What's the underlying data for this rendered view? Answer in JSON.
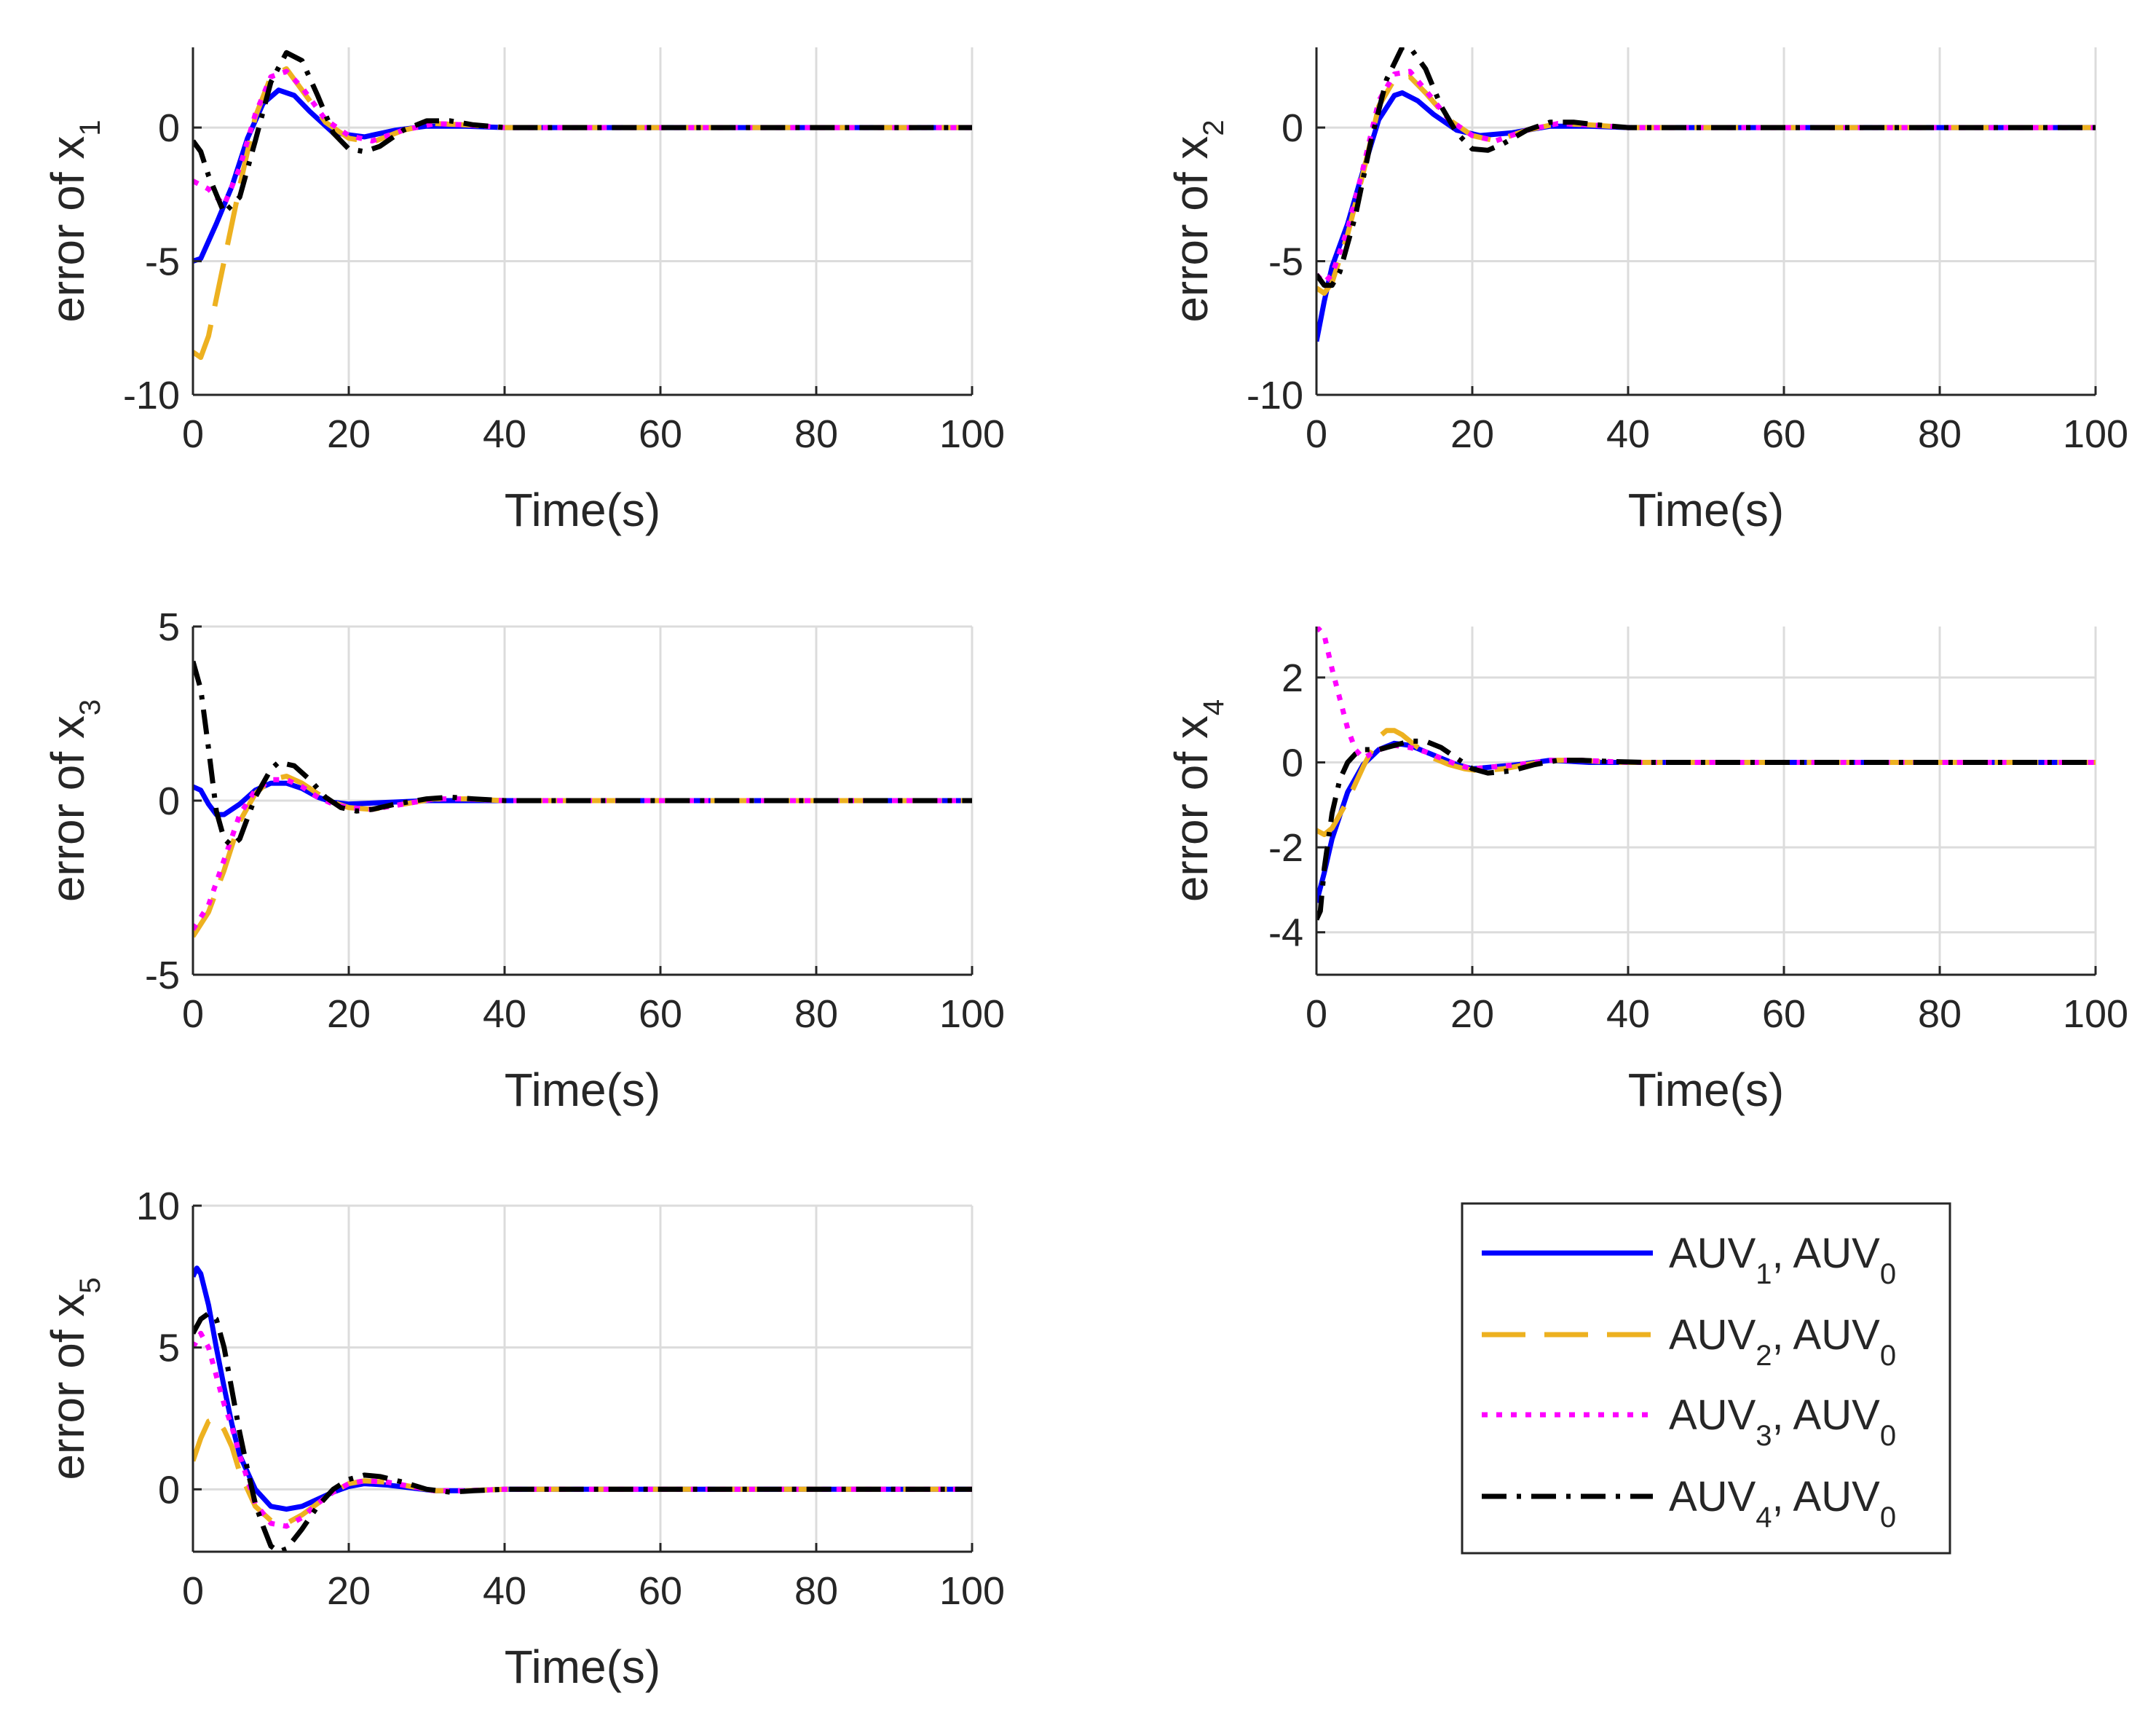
{
  "legend": {
    "location": "bottom-right",
    "entries": [
      {
        "main": "AUV",
        "sub": "1",
        "sep": ", ",
        "main2": "AUV",
        "sub2": "0"
      },
      {
        "main": "AUV",
        "sub": "2",
        "sep": ", ",
        "main2": "AUV",
        "sub2": "0"
      },
      {
        "main": "AUV",
        "sub": "3",
        "sep": ", ",
        "main2": "AUV",
        "sub2": "0"
      },
      {
        "main": "AUV",
        "sub": "4",
        "sep": ", ",
        "main2": "AUV",
        "sub2": "0"
      }
    ]
  },
  "series_style": [
    {
      "name": "AUV1, AUV0",
      "color": "#0000ff",
      "dash": "solid"
    },
    {
      "name": "AUV2, AUV0",
      "color": "#edb120",
      "dash": "dashed"
    },
    {
      "name": "AUV3, AUV0",
      "color": "#ff00ff",
      "dash": "dotted"
    },
    {
      "name": "AUV4, AUV0",
      "color": "#000000",
      "dash": "dashdot"
    }
  ],
  "chart_data": [
    {
      "type": "line",
      "ylabel_main": "error of x",
      "ylabel_sub": "1",
      "xlabel": "Time(s)",
      "xlim": [
        0,
        100
      ],
      "ylim": [
        -10,
        3
      ],
      "xticks": [
        "0",
        "20",
        "40",
        "60",
        "80",
        "100"
      ],
      "yticks": [
        {
          "v": -10,
          "t": "-10"
        },
        {
          "v": -5,
          "t": "-5"
        },
        {
          "v": 0,
          "t": "0"
        }
      ],
      "grid": true,
      "series": [
        {
          "name": "AUV1, AUV0",
          "x": [
            0,
            1,
            3,
            5,
            7,
            9,
            11,
            13,
            15,
            18,
            22,
            26,
            30,
            35,
            40,
            45,
            100
          ],
          "y": [
            -5,
            -4.9,
            -3.6,
            -2.2,
            -0.4,
            0.9,
            1.4,
            1.2,
            0.6,
            -0.2,
            -0.35,
            -0.1,
            0.05,
            0.05,
            0,
            0,
            0
          ]
        },
        {
          "name": "AUV2, AUV0",
          "x": [
            0,
            1,
            2,
            4,
            6,
            8,
            10,
            12,
            14,
            17,
            20,
            23,
            27,
            31,
            35,
            40,
            45,
            100
          ],
          "y": [
            -8.4,
            -8.6,
            -7.8,
            -5,
            -2.2,
            0.4,
            1.9,
            2.2,
            1.4,
            0.2,
            -0.4,
            -0.55,
            -0.1,
            0.15,
            0.1,
            0,
            0,
            0
          ]
        },
        {
          "name": "AUV3, AUV0",
          "x": [
            0,
            2,
            4,
            6,
            8,
            10,
            12,
            14,
            17,
            20,
            23,
            27,
            31,
            35,
            40,
            45,
            100
          ],
          "y": [
            -2,
            -2.3,
            -2.9,
            -1.5,
            0.5,
            1.9,
            2.1,
            1.5,
            0.3,
            -0.3,
            -0.5,
            -0.1,
            0.15,
            0.1,
            0,
            0,
            0
          ]
        },
        {
          "name": "AUV4, AUV0",
          "x": [
            0,
            1,
            2,
            4,
            6,
            8,
            10,
            12,
            14,
            16,
            18,
            20,
            22,
            24,
            27,
            30,
            33,
            36,
            40,
            45,
            100
          ],
          "y": [
            -0.5,
            -0.9,
            -1.8,
            -3.2,
            -2.6,
            -0.5,
            1.7,
            2.8,
            2.5,
            1.2,
            -0.2,
            -0.8,
            -0.9,
            -0.7,
            -0.1,
            0.25,
            0.25,
            0.1,
            0,
            0,
            0
          ]
        }
      ]
    },
    {
      "type": "line",
      "ylabel_main": "error of x",
      "ylabel_sub": "2",
      "xlabel": "Time(s)",
      "xlim": [
        0,
        100
      ],
      "ylim": [
        -10,
        3
      ],
      "xticks": [
        "0",
        "20",
        "40",
        "60",
        "80",
        "100"
      ],
      "yticks": [
        {
          "v": -10,
          "t": "-10"
        },
        {
          "v": -5,
          "t": "-5"
        },
        {
          "v": 0,
          "t": "0"
        }
      ],
      "grid": true,
      "series": [
        {
          "name": "AUV1, AUV0",
          "x": [
            0,
            1,
            2,
            4,
            6,
            8,
            10,
            11,
            13,
            15,
            18,
            21,
            25,
            30,
            35,
            40,
            45,
            100
          ],
          "y": [
            -8,
            -6.5,
            -5.2,
            -3.6,
            -1.6,
            0.3,
            1.2,
            1.3,
            1,
            0.5,
            -0.1,
            -0.3,
            -0.2,
            0.05,
            0.05,
            0,
            0,
            0
          ]
        },
        {
          "name": "AUV2, AUV0",
          "x": [
            0,
            1,
            2,
            4,
            6,
            8,
            10,
            12,
            14,
            17,
            20,
            23,
            27,
            31,
            35,
            40,
            45,
            100
          ],
          "y": [
            -6,
            -6.2,
            -5.8,
            -4,
            -1.7,
            0.8,
            1.8,
            1.9,
            1.3,
            0.3,
            -0.3,
            -0.5,
            -0.1,
            0.15,
            0.1,
            0,
            0,
            0
          ]
        },
        {
          "name": "AUV3, AUV0",
          "x": [
            0,
            1,
            2,
            4,
            6,
            8,
            10,
            12,
            14,
            17,
            20,
            23,
            27,
            31,
            35,
            40,
            45,
            100
          ],
          "y": [
            -5.5,
            -5.8,
            -5.5,
            -3.8,
            -1.5,
            1,
            2,
            2.1,
            1.4,
            0.3,
            -0.3,
            -0.5,
            -0.1,
            0.15,
            0.1,
            0,
            0,
            0
          ]
        },
        {
          "name": "AUV4, AUV0",
          "x": [
            0,
            1,
            2,
            3,
            5,
            7,
            9,
            11,
            12,
            14,
            16,
            18,
            20,
            22,
            24,
            27,
            30,
            33,
            36,
            40,
            45,
            100
          ],
          "y": [
            -5.5,
            -5.9,
            -5.9,
            -5.4,
            -3.3,
            -0.5,
            1.8,
            3,
            3,
            2.2,
            0.8,
            -0.2,
            -0.8,
            -0.85,
            -0.6,
            -0.1,
            0.2,
            0.2,
            0.1,
            0,
            0,
            0
          ]
        }
      ]
    },
    {
      "type": "line",
      "ylabel_main": "error of x",
      "ylabel_sub": "3",
      "xlabel": "Time(s)",
      "xlim": [
        0,
        100
      ],
      "ylim": [
        -5,
        5
      ],
      "xticks": [
        "0",
        "20",
        "40",
        "60",
        "80",
        "100"
      ],
      "yticks": [
        {
          "v": -5,
          "t": "-5"
        },
        {
          "v": 0,
          "t": "0"
        },
        {
          "v": 5,
          "t": "5"
        }
      ],
      "grid": true,
      "series": [
        {
          "name": "AUV1, AUV0",
          "x": [
            0,
            1,
            2,
            3,
            4,
            6,
            8,
            10,
            12,
            14,
            16,
            18,
            20,
            25,
            30,
            35,
            40,
            100
          ],
          "y": [
            0.4,
            0.3,
            -0.1,
            -0.4,
            -0.4,
            -0.1,
            0.3,
            0.5,
            0.5,
            0.35,
            0.1,
            -0.05,
            -0.1,
            -0.05,
            0,
            0,
            0,
            0
          ]
        },
        {
          "name": "AUV2, AUV0",
          "x": [
            0,
            2,
            4,
            6,
            8,
            10,
            12,
            14,
            16,
            18,
            20,
            23,
            27,
            31,
            35,
            40,
            100
          ],
          "y": [
            -3.9,
            -3.2,
            -2,
            -0.6,
            0.2,
            0.6,
            0.7,
            0.5,
            0.2,
            -0.05,
            -0.2,
            -0.25,
            -0.1,
            0.05,
            0.05,
            0,
            0
          ]
        },
        {
          "name": "AUV3, AUV0",
          "x": [
            0,
            2,
            4,
            6,
            8,
            10,
            12,
            14,
            16,
            18,
            20,
            23,
            27,
            31,
            35,
            40,
            100
          ],
          "y": [
            -3.7,
            -3,
            -1.7,
            -0.4,
            0.3,
            0.6,
            0.6,
            0.4,
            0.1,
            -0.1,
            -0.2,
            -0.25,
            -0.1,
            0.05,
            0.05,
            0,
            0
          ]
        },
        {
          "name": "AUV4, AUV0",
          "x": [
            0,
            1,
            2,
            3,
            4,
            5,
            6,
            8,
            10,
            11,
            13,
            15,
            17,
            19,
            21,
            23,
            26,
            30,
            33,
            36,
            40,
            100
          ],
          "y": [
            4,
            3.2,
            1.5,
            -0.3,
            -1.1,
            -1.3,
            -1.1,
            0.1,
            0.9,
            1.1,
            1,
            0.6,
            0.1,
            -0.2,
            -0.3,
            -0.25,
            -0.1,
            0.05,
            0.1,
            0.05,
            0,
            0
          ]
        }
      ]
    },
    {
      "type": "line",
      "ylabel_main": "error of x",
      "ylabel_sub": "4",
      "xlabel": "Time(s)",
      "xlim": [
        0,
        100
      ],
      "ylim": [
        -5,
        3.2
      ],
      "xticks": [
        "0",
        "20",
        "40",
        "60",
        "80",
        "100"
      ],
      "yticks": [
        {
          "v": -4,
          "t": "-4"
        },
        {
          "v": -2,
          "t": "-2"
        },
        {
          "v": 0,
          "t": "0"
        },
        {
          "v": 2,
          "t": "2"
        }
      ],
      "grid": true,
      "series": [
        {
          "name": "AUV1, AUV0",
          "x": [
            0,
            1,
            2,
            4,
            6,
            8,
            10,
            12,
            14,
            16,
            18,
            20,
            23,
            26,
            30,
            35,
            40,
            100
          ],
          "y": [
            -3.3,
            -2.6,
            -1.8,
            -0.7,
            -0.05,
            0.3,
            0.45,
            0.4,
            0.25,
            0.1,
            -0.05,
            -0.15,
            -0.1,
            -0.05,
            0.05,
            0,
            0,
            0
          ]
        },
        {
          "name": "AUV2, AUV0",
          "x": [
            0,
            1,
            2,
            4,
            6,
            8,
            9,
            10,
            11,
            13,
            15,
            17,
            19,
            21,
            24,
            27,
            30,
            34,
            38,
            42,
            100
          ],
          "y": [
            -1.6,
            -1.7,
            -1.55,
            -0.9,
            -0.1,
            0.6,
            0.75,
            0.75,
            0.65,
            0.35,
            0.1,
            -0.05,
            -0.15,
            -0.2,
            -0.15,
            -0.05,
            0.05,
            0.05,
            0,
            0,
            0
          ]
        },
        {
          "name": "AUV3, AUV0",
          "x": [
            0,
            1,
            2,
            3,
            4,
            5,
            6,
            7,
            8,
            10,
            12,
            14,
            16,
            18,
            20,
            23,
            26,
            30,
            34,
            40,
            100
          ],
          "y": [
            3.2,
            3,
            2.2,
            1.5,
            0.8,
            0.3,
            0.1,
            0.2,
            0.3,
            0.4,
            0.35,
            0.25,
            0.1,
            -0.05,
            -0.15,
            -0.1,
            -0.05,
            0.05,
            0.05,
            0,
            0
          ]
        },
        {
          "name": "AUV4, AUV0",
          "x": [
            0,
            0.5,
            1,
            2,
            3,
            4,
            5,
            6,
            8,
            10,
            12,
            14,
            16,
            18,
            20,
            22,
            25,
            28,
            31,
            34,
            38,
            42,
            100
          ],
          "y": [
            -3.7,
            -3.5,
            -2.5,
            -1.2,
            -0.4,
            0,
            0.2,
            0.3,
            0.3,
            0.4,
            0.5,
            0.5,
            0.35,
            0.1,
            -0.15,
            -0.25,
            -0.2,
            -0.05,
            0.05,
            0.05,
            0.02,
            0,
            0
          ]
        }
      ]
    },
    {
      "type": "line",
      "ylabel_main": "error of x",
      "ylabel_sub": "5",
      "xlabel": "Time(s)",
      "xlim": [
        0,
        100
      ],
      "ylim": [
        -2.2,
        10
      ],
      "xticks": [
        "0",
        "20",
        "40",
        "60",
        "80",
        "100"
      ],
      "yticks": [
        {
          "v": 0,
          "t": "0"
        },
        {
          "v": 5,
          "t": "5"
        },
        {
          "v": 10,
          "t": "10"
        }
      ],
      "grid": true,
      "series": [
        {
          "name": "AUV1, AUV0",
          "x": [
            0,
            0.5,
            1,
            2,
            3,
            4,
            5,
            6,
            8,
            10,
            12,
            14,
            16,
            18,
            20,
            22,
            25,
            28,
            31,
            35,
            40,
            100
          ],
          "y": [
            7.5,
            7.8,
            7.6,
            6.5,
            5,
            3.6,
            2.3,
            1.2,
            0,
            -0.6,
            -0.7,
            -0.6,
            -0.35,
            -0.1,
            0.1,
            0.2,
            0.15,
            0.05,
            -0.05,
            -0.05,
            0,
            0
          ]
        },
        {
          "name": "AUV2, AUV0",
          "x": [
            0,
            1,
            2,
            3,
            4,
            5,
            6,
            8,
            10,
            12,
            14,
            16,
            18,
            20,
            22,
            25,
            28,
            31,
            35,
            40,
            100
          ],
          "y": [
            1,
            1.8,
            2.4,
            2.5,
            2.1,
            1.5,
            0.6,
            -0.6,
            -1.1,
            -1.2,
            -0.9,
            -0.5,
            -0.1,
            0.2,
            0.3,
            0.25,
            0.1,
            -0.05,
            -0.05,
            0,
            0
          ]
        },
        {
          "name": "AUV3, AUV0",
          "x": [
            0,
            1,
            2,
            3,
            4,
            5,
            6,
            8,
            10,
            12,
            14,
            16,
            18,
            20,
            22,
            25,
            28,
            31,
            35,
            40,
            100
          ],
          "y": [
            5,
            5.5,
            5,
            4,
            3,
            2.2,
            1.2,
            -0.5,
            -1.2,
            -1.3,
            -1,
            -0.5,
            -0.1,
            0.2,
            0.3,
            0.25,
            0.1,
            -0.05,
            -0.05,
            0,
            0
          ]
        },
        {
          "name": "AUV4, AUV0",
          "x": [
            0,
            1,
            2,
            3,
            4,
            5,
            6,
            7,
            8,
            9,
            10,
            11,
            12,
            14,
            16,
            18,
            20,
            22,
            24,
            27,
            30,
            33,
            36,
            40,
            100
          ],
          "y": [
            5.5,
            6,
            6.2,
            6,
            5,
            3.5,
            2,
            0.7,
            -0.5,
            -1.3,
            -2,
            -2.2,
            -2.1,
            -1.4,
            -0.6,
            0,
            0.35,
            0.5,
            0.45,
            0.25,
            0,
            -0.1,
            -0.05,
            0,
            0
          ]
        }
      ]
    }
  ]
}
